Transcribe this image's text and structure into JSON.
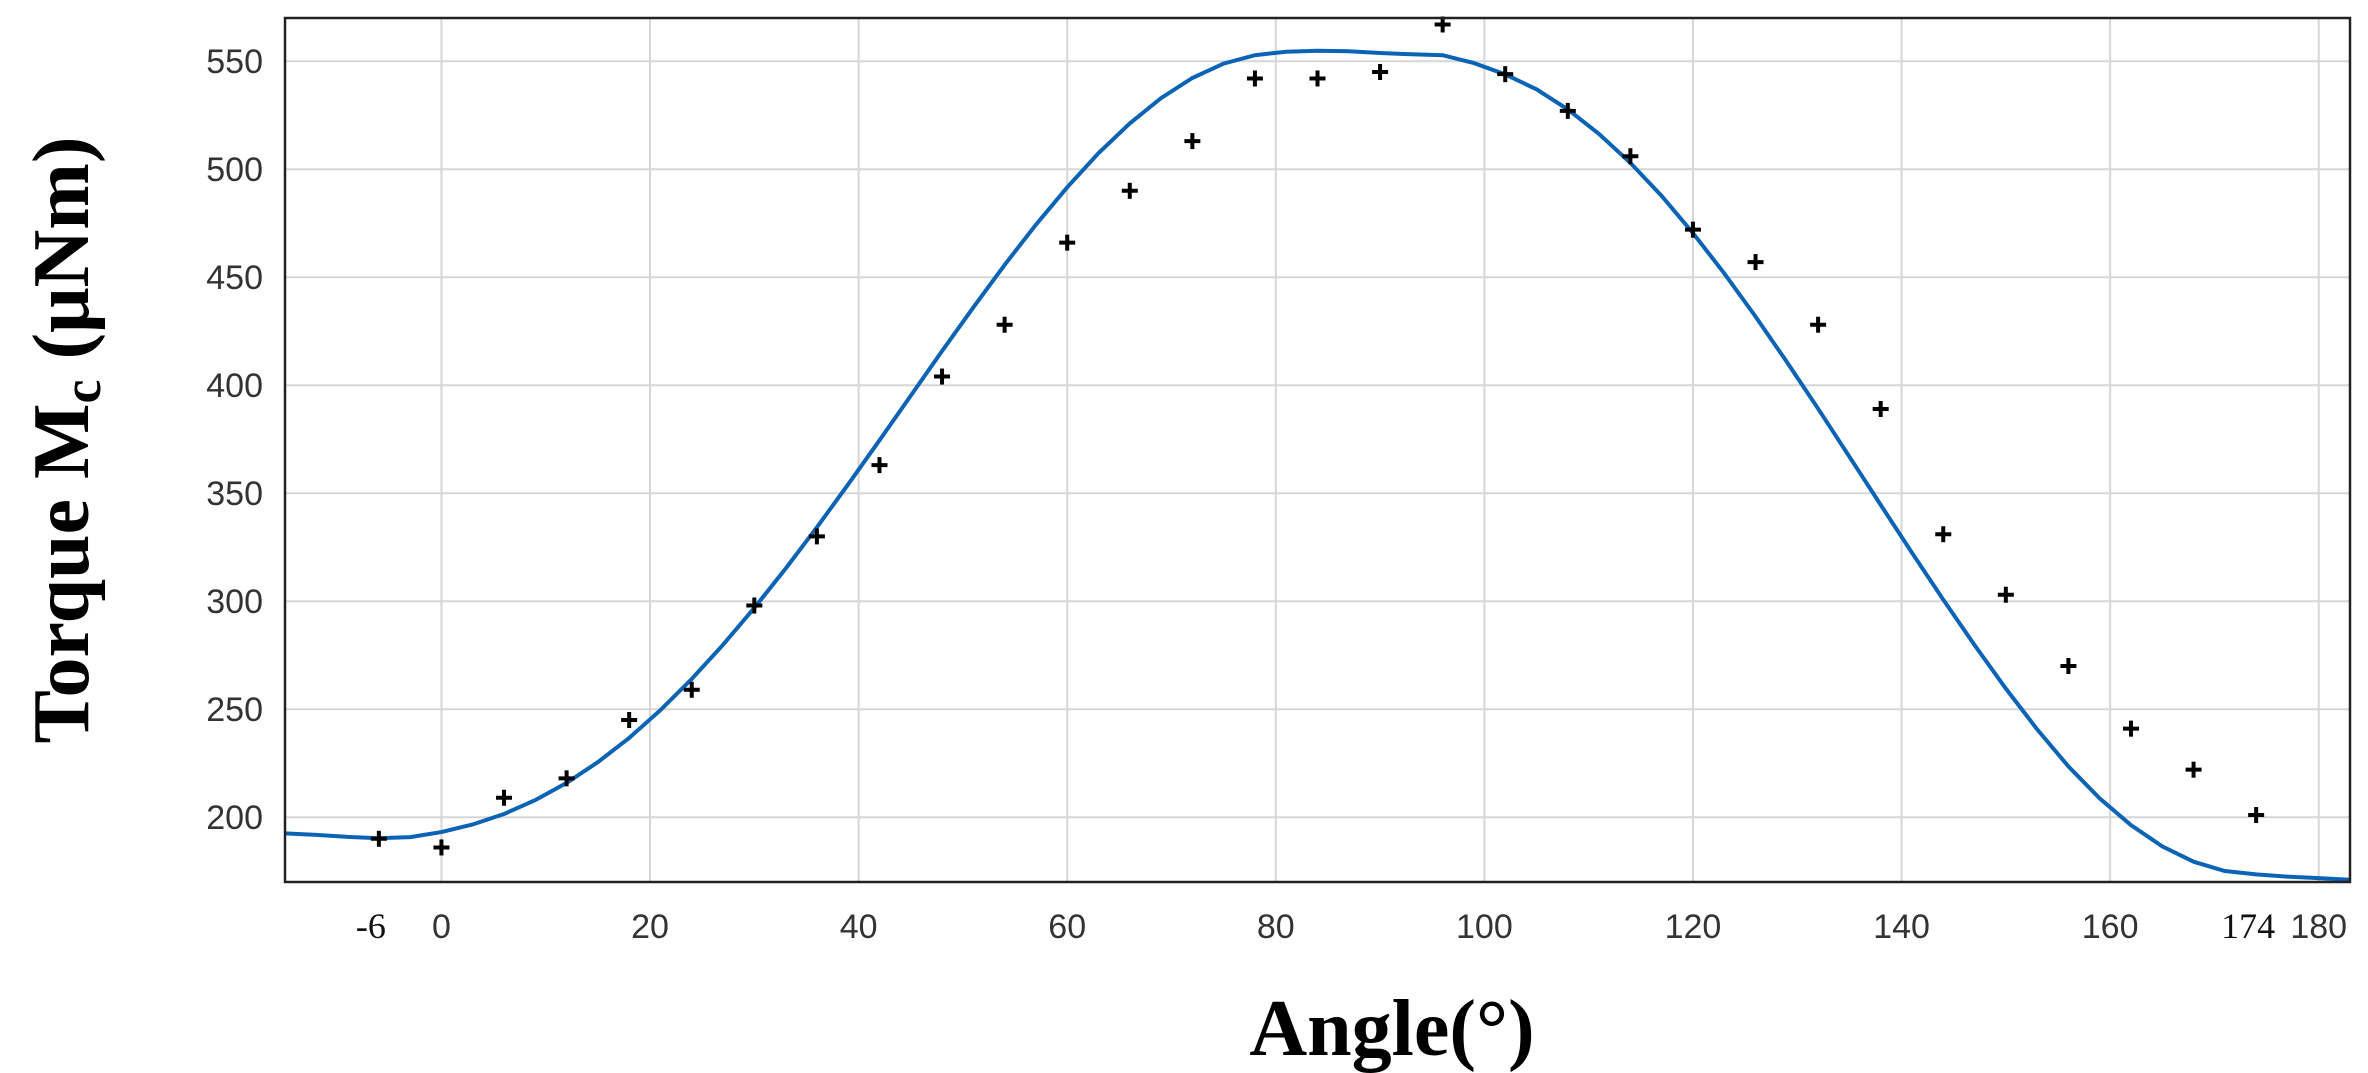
{
  "chart_data": {
    "type": "scatter",
    "xlabel": "Angle(°)",
    "ylabel": "Torque Mc (μNm)",
    "ylabel_main": "Torque M",
    "ylabel_sub": "c",
    "ylabel_unit": " (μNm)",
    "xlim": [
      -15,
      183
    ],
    "ylim": [
      170,
      570
    ],
    "x_ticks": [
      0,
      20,
      40,
      60,
      80,
      100,
      120,
      140,
      160,
      180
    ],
    "x_tick_labels": [
      "0",
      "20",
      "40",
      "60",
      "80",
      "100",
      "120",
      "140",
      "160",
      "180"
    ],
    "x_extra_ticks": [
      -6,
      174
    ],
    "x_extra_tick_labels": [
      "-6",
      "174"
    ],
    "y_ticks": [
      200,
      250,
      300,
      350,
      400,
      450,
      500,
      550
    ],
    "y_tick_labels": [
      "200",
      "250",
      "300",
      "350",
      "400",
      "450",
      "500",
      "550"
    ],
    "grid": true,
    "series": [
      {
        "kind": "points",
        "x": [
          -6,
          0,
          6,
          12,
          18,
          24,
          30,
          36,
          42,
          48,
          54,
          60,
          66,
          72,
          78,
          84,
          90,
          96,
          102,
          108,
          114,
          120,
          126,
          132,
          138,
          144,
          150,
          156,
          162,
          168,
          174
        ],
        "y": [
          190,
          186,
          209,
          218,
          245,
          259,
          298,
          330,
          363,
          404,
          428,
          466,
          490,
          513,
          542,
          542,
          545,
          567,
          544,
          527,
          506,
          472,
          457,
          428,
          389,
          331,
          303,
          270,
          241,
          222,
          201
        ]
      },
      {
        "kind": "fit-curve",
        "x": [
          -15,
          -12,
          -9,
          -6,
          -3,
          0,
          3,
          6,
          9,
          12,
          15,
          18,
          21,
          24,
          27,
          30,
          33,
          36,
          39,
          42,
          45,
          48,
          51,
          54,
          57,
          60,
          63,
          66,
          69,
          72,
          75,
          78,
          81,
          84,
          87,
          90,
          93,
          96,
          99,
          102,
          105,
          108,
          111,
          114,
          117,
          120,
          123,
          126,
          129,
          132,
          135,
          138,
          141,
          144,
          147,
          150,
          153,
          156,
          159,
          162,
          165,
          168,
          171,
          174,
          177,
          180,
          183
        ],
        "y": [
          192.5,
          191.8,
          190.9,
          190.3,
          190.8,
          193.1,
          196.6,
          201.5,
          207.9,
          215.9,
          225.5,
          236.7,
          249.6,
          264.0,
          279.8,
          296.9,
          315.1,
          334.2,
          354.1,
          374.5,
          395.2,
          415.8,
          436.0,
          455.7,
          474.3,
          491.6,
          507.4,
          521.2,
          532.9,
          542.2,
          548.9,
          552.8,
          554.4,
          554.8,
          554.6,
          553.8,
          553.2,
          552.8,
          549.1,
          543.9,
          537.0,
          527.7,
          516.3,
          502.9,
          487.6,
          470.4,
          451.8,
          431.8,
          410.8,
          389.1,
          366.9,
          344.6,
          322.4,
          300.7,
          279.7,
          259.6,
          240.7,
          223.5,
          208.7,
          196.3,
          186.5,
          179.4,
          175.1,
          173.5,
          172.5,
          171.8,
          171.0
        ]
      }
    ]
  },
  "colors": {
    "fit_curve": "#0a63b5",
    "markers": "#000000",
    "grid": "#d6d6d6"
  }
}
